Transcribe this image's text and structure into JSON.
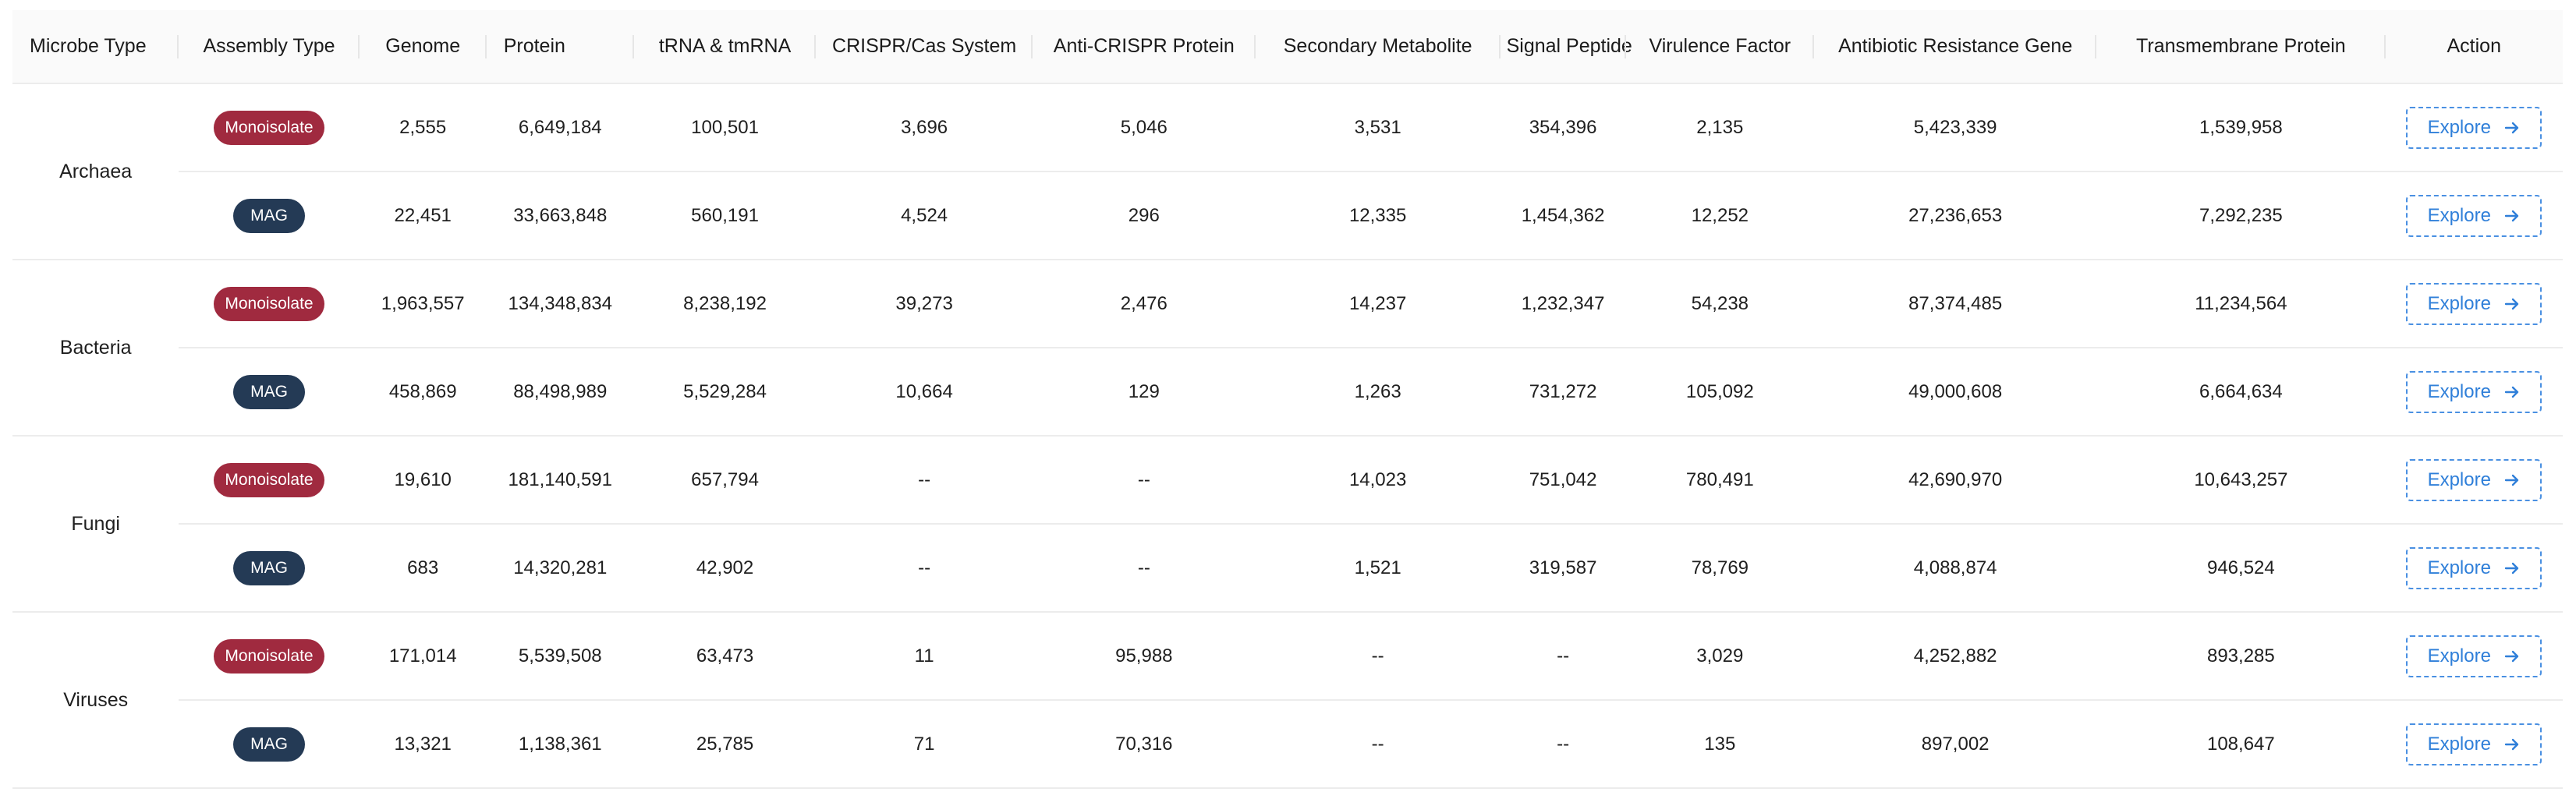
{
  "headers": {
    "microbe_type": "Microbe Type",
    "assembly_type": "Assembly Type",
    "genome": "Genome",
    "protein": "Protein",
    "trna": "tRNA & tmRNA",
    "crispr": "CRISPR/Cas System",
    "anti_crispr": "Anti-CRISPR Protein",
    "secondary_metabolite": "Secondary Metabolite",
    "signal_peptide": "Signal Peptide",
    "virulence_factor": "Virulence Factor",
    "antibiotic_resistance": "Antibiotic Resistance Gene",
    "transmembrane": "Transmembrane Protein",
    "action": "Action"
  },
  "badge_colors": {
    "monoisolate": "#a02a3f",
    "mag": "#243a55",
    "explore": "#2f7fd9"
  },
  "groups": [
    {
      "microbe": "Archaea",
      "rows": [
        {
          "assembly": "Monoisolate",
          "genome": "2,555",
          "protein": "6,649,184",
          "trna": "100,501",
          "crispr": "3,696",
          "anti_crispr": "5,046",
          "secondary_metabolite": "3,531",
          "signal_peptide": "354,396",
          "virulence_factor": "2,135",
          "antibiotic_resistance": "5,423,339",
          "transmembrane": "1,539,958",
          "action": "Explore"
        },
        {
          "assembly": "MAG",
          "genome": "22,451",
          "protein": "33,663,848",
          "trna": "560,191",
          "crispr": "4,524",
          "anti_crispr": "296",
          "secondary_metabolite": "12,335",
          "signal_peptide": "1,454,362",
          "virulence_factor": "12,252",
          "antibiotic_resistance": "27,236,653",
          "transmembrane": "7,292,235",
          "action": "Explore"
        }
      ]
    },
    {
      "microbe": "Bacteria",
      "rows": [
        {
          "assembly": "Monoisolate",
          "genome": "1,963,557",
          "protein": "134,348,834",
          "trna": "8,238,192",
          "crispr": "39,273",
          "anti_crispr": "2,476",
          "secondary_metabolite": "14,237",
          "signal_peptide": "1,232,347",
          "virulence_factor": "54,238",
          "antibiotic_resistance": "87,374,485",
          "transmembrane": "11,234,564",
          "action": "Explore"
        },
        {
          "assembly": "MAG",
          "genome": "458,869",
          "protein": "88,498,989",
          "trna": "5,529,284",
          "crispr": "10,664",
          "anti_crispr": "129",
          "secondary_metabolite": "1,263",
          "signal_peptide": "731,272",
          "virulence_factor": "105,092",
          "antibiotic_resistance": "49,000,608",
          "transmembrane": "6,664,634",
          "action": "Explore"
        }
      ]
    },
    {
      "microbe": "Fungi",
      "rows": [
        {
          "assembly": "Monoisolate",
          "genome": "19,610",
          "protein": "181,140,591",
          "trna": "657,794",
          "crispr": "--",
          "anti_crispr": "--",
          "secondary_metabolite": "14,023",
          "signal_peptide": "751,042",
          "virulence_factor": "780,491",
          "antibiotic_resistance": "42,690,970",
          "transmembrane": "10,643,257",
          "action": "Explore"
        },
        {
          "assembly": "MAG",
          "genome": "683",
          "protein": "14,320,281",
          "trna": "42,902",
          "crispr": "--",
          "anti_crispr": "--",
          "secondary_metabolite": "1,521",
          "signal_peptide": "319,587",
          "virulence_factor": "78,769",
          "antibiotic_resistance": "4,088,874",
          "transmembrane": "946,524",
          "action": "Explore"
        }
      ]
    },
    {
      "microbe": "Viruses",
      "rows": [
        {
          "assembly": "Monoisolate",
          "genome": "171,014",
          "protein": "5,539,508",
          "trna": "63,473",
          "crispr": "11",
          "anti_crispr": "95,988",
          "secondary_metabolite": "--",
          "signal_peptide": "--",
          "virulence_factor": "3,029",
          "antibiotic_resistance": "4,252,882",
          "transmembrane": "893,285",
          "action": "Explore"
        },
        {
          "assembly": "MAG",
          "genome": "13,321",
          "protein": "1,138,361",
          "trna": "25,785",
          "crispr": "71",
          "anti_crispr": "70,316",
          "secondary_metabolite": "--",
          "signal_peptide": "--",
          "virulence_factor": "135",
          "antibiotic_resistance": "897,002",
          "transmembrane": "108,647",
          "action": "Explore"
        }
      ]
    }
  ]
}
